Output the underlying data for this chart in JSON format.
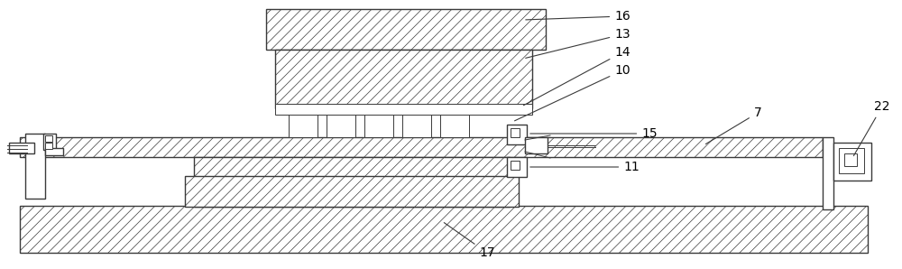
{
  "fig_width": 10.0,
  "fig_height": 2.98,
  "dpi": 100,
  "bg_color": "#ffffff",
  "line_color": "#3a3a3a",
  "lw": 1.0,
  "tlw": 0.7,
  "hatch_lw": 0.5
}
